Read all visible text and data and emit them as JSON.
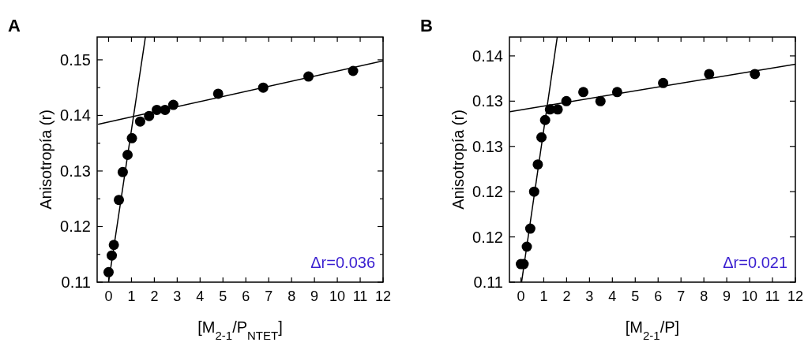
{
  "chart_data": [
    {
      "type": "scatter",
      "title": "A",
      "xlabel": "[M$_{2-1}$/P$_{NTET}$]",
      "ylabel": "Anisotropía (r)",
      "annotations": [
        "Δr=0.036"
      ],
      "xlim": [
        -0.5,
        12
      ],
      "xticks": [
        0,
        1,
        2,
        3,
        4,
        5,
        6,
        7,
        8,
        9,
        10,
        11,
        12
      ],
      "ylim": [
        0.11,
        0.1541
      ],
      "yticks": [
        0.11,
        {
          "value": 0.115,
          "label": null
        },
        0.12,
        {
          "value": 0.125,
          "label": null
        },
        0.13,
        {
          "value": 0.135,
          "label": null
        },
        0.14,
        {
          "value": 0.145,
          "label": null
        },
        0.15
      ],
      "grid": false,
      "marker": "circle",
      "series": [
        {
          "color": "#000000",
          "x": [
            0,
            0.14,
            0.23,
            0.45,
            0.62,
            0.83,
            1.02,
            1.38,
            1.77,
            2.11,
            2.47,
            2.83,
            4.79,
            6.76,
            8.74,
            10.69
          ],
          "values": [
            0.1118,
            0.1148,
            0.1167,
            0.1248,
            0.1298,
            0.1329,
            0.1359,
            0.1389,
            0.1399,
            0.141,
            0.141,
            0.1419,
            0.1439,
            0.145,
            0.147,
            0.148
          ]
        },
        {
          "type": "line",
          "marker": "none",
          "color": "#000000",
          "x": [
            0,
            1.61
          ],
          "values": [
            0.11,
            0.1541
          ]
        },
        {
          "type": "line",
          "marker": "none",
          "color": "#000000",
          "x": [
            -0.46,
            12
          ],
          "values": [
            0.1384,
            0.1498
          ]
        }
      ]
    },
    {
      "type": "scatter",
      "title": "B",
      "xlabel": "[M$_{2-1}$/P]",
      "ylabel": "Anisotropía (r)",
      "annotations": [
        "Δr=0.021"
      ],
      "xlim": [
        -0.5,
        12
      ],
      "xticks": [
        0,
        1,
        2,
        3,
        4,
        5,
        6,
        7,
        8,
        9,
        10,
        11,
        12
      ],
      "ylim": [
        0.11,
        0.1425
      ],
      "yticks": [
        {
          "value": 0.11,
          "label": "0.11"
        },
        {
          "value": 0.116,
          "label": "0.12"
        },
        {
          "value": 0.122,
          "label": "0.12"
        },
        {
          "value": 0.128,
          "label": "0.13"
        },
        {
          "value": 0.134,
          "label": "0.13"
        },
        {
          "value": 0.14,
          "label": "0.14"
        }
      ],
      "grid": false,
      "marker": "circle",
      "series": [
        {
          "color": "#000000",
          "x": [
            0,
            0.12,
            0.26,
            0.41,
            0.58,
            0.74,
            0.9,
            1.06,
            1.27,
            1.61,
            1.99,
            2.73,
            3.48,
            4.21,
            6.22,
            8.23,
            10.23
          ],
          "values": [
            0.1124,
            0.1124,
            0.1147,
            0.1171,
            0.122,
            0.1256,
            0.1292,
            0.1315,
            0.1329,
            0.1329,
            0.134,
            0.1352,
            0.134,
            0.1352,
            0.1364,
            0.1376,
            0.1376
          ]
        },
        {
          "type": "line",
          "marker": "none",
          "color": "#000000",
          "x": [
            0.03,
            1.59
          ],
          "values": [
            0.11,
            0.1425
          ]
        },
        {
          "type": "line",
          "marker": "none",
          "color": "#000000",
          "x": [
            -0.48,
            12
          ],
          "values": [
            0.1326,
            0.1389
          ]
        }
      ]
    }
  ]
}
